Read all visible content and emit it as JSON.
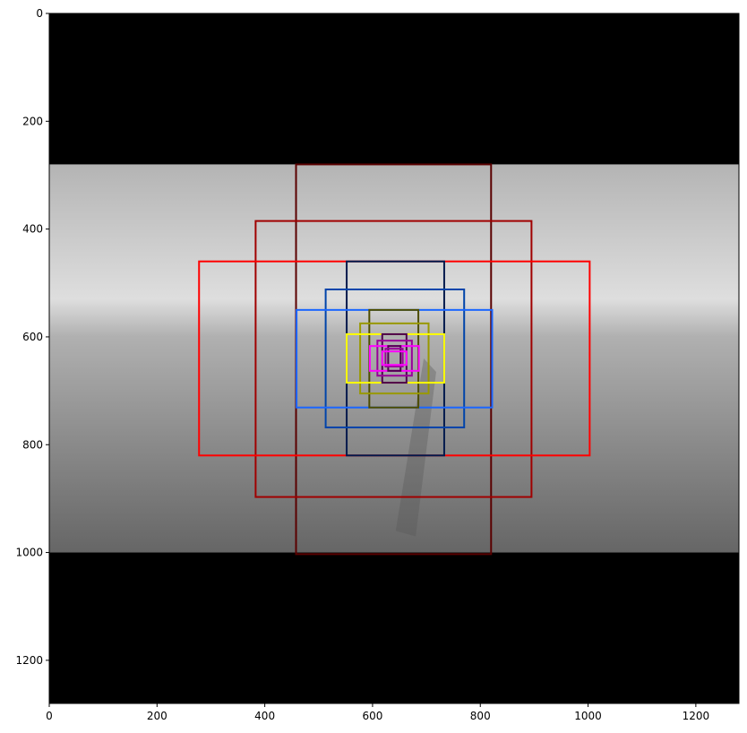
{
  "image": {
    "width": 1280,
    "height": 1280,
    "content_rows": [
      280,
      1000
    ],
    "background": "#000000",
    "gradient": [
      {
        "y": 280,
        "color": "#b4b4b4"
      },
      {
        "y": 530,
        "color": "#dedede"
      },
      {
        "y": 600,
        "color": "#b0b0b0"
      },
      {
        "y": 800,
        "color": "#8a8a8a"
      },
      {
        "y": 1000,
        "color": "#666666"
      }
    ],
    "shadow": {
      "color": "#555555",
      "opacity": 0.35,
      "points": [
        [
          695,
          640
        ],
        [
          718,
          665
        ],
        [
          680,
          970
        ],
        [
          643,
          960
        ]
      ]
    }
  },
  "axes": {
    "xlim": [
      0,
      1280
    ],
    "ylim": [
      1280,
      0
    ],
    "x_ticks": [
      0,
      200,
      400,
      600,
      800,
      1000,
      1200
    ],
    "y_ticks": [
      0,
      200,
      400,
      600,
      800,
      1000,
      1200
    ],
    "x_tick_labels": [
      "0",
      "200",
      "400",
      "600",
      "800",
      "1000",
      "1200"
    ],
    "y_tick_labels": [
      "0",
      "200",
      "400",
      "600",
      "800",
      "1000",
      "1200"
    ]
  },
  "overlays": [
    {
      "kind": "rect",
      "x0": 458,
      "y0": 280,
      "x1": 820,
      "y1": 1003,
      "color": "#5a0000"
    },
    {
      "kind": "rect",
      "x0": 383,
      "y0": 385,
      "x1": 895,
      "y1": 897,
      "color": "#a00000"
    },
    {
      "kind": "rect",
      "x0": 278,
      "y0": 460,
      "x1": 1003,
      "y1": 820,
      "color": "#ff0000"
    },
    {
      "kind": "rect",
      "x0": 552,
      "y0": 460,
      "x1": 733,
      "y1": 820,
      "color": "#001a4d"
    },
    {
      "kind": "rect",
      "x0": 513,
      "y0": 512,
      "x1": 770,
      "y1": 768,
      "color": "#0044aa"
    },
    {
      "kind": "rect",
      "x0": 459,
      "y0": 550,
      "x1": 822,
      "y1": 731,
      "color": "#1a66ff"
    },
    {
      "kind": "rect",
      "x0": 594,
      "y0": 550,
      "x1": 685,
      "y1": 731,
      "color": "#4d4d00"
    },
    {
      "kind": "rect",
      "x0": 577,
      "y0": 575,
      "x1": 704,
      "y1": 705,
      "color": "#999900"
    },
    {
      "kind": "rect",
      "x0": 552,
      "y0": 595,
      "x1": 733,
      "y1": 685,
      "color": "#ffff00"
    },
    {
      "kind": "rect",
      "x0": 618,
      "y0": 595,
      "x1": 663,
      "y1": 685,
      "color": "#4d004d"
    },
    {
      "kind": "rect",
      "x0": 609,
      "y0": 607,
      "x1": 673,
      "y1": 672,
      "color": "#990099"
    },
    {
      "kind": "rect",
      "x0": 595,
      "y0": 617,
      "x1": 686,
      "y1": 663,
      "color": "#ff00ff"
    },
    {
      "kind": "rect",
      "x0": 629,
      "y0": 617,
      "x1": 652,
      "y1": 663,
      "color": "#4d004d"
    },
    {
      "kind": "rect",
      "x0": 624,
      "y0": 622,
      "x1": 656,
      "y1": 655,
      "color": "#990099"
    },
    {
      "kind": "rect",
      "x0": 618,
      "y0": 627,
      "x1": 663,
      "y1": 652,
      "color": "#ff00ff"
    }
  ]
}
